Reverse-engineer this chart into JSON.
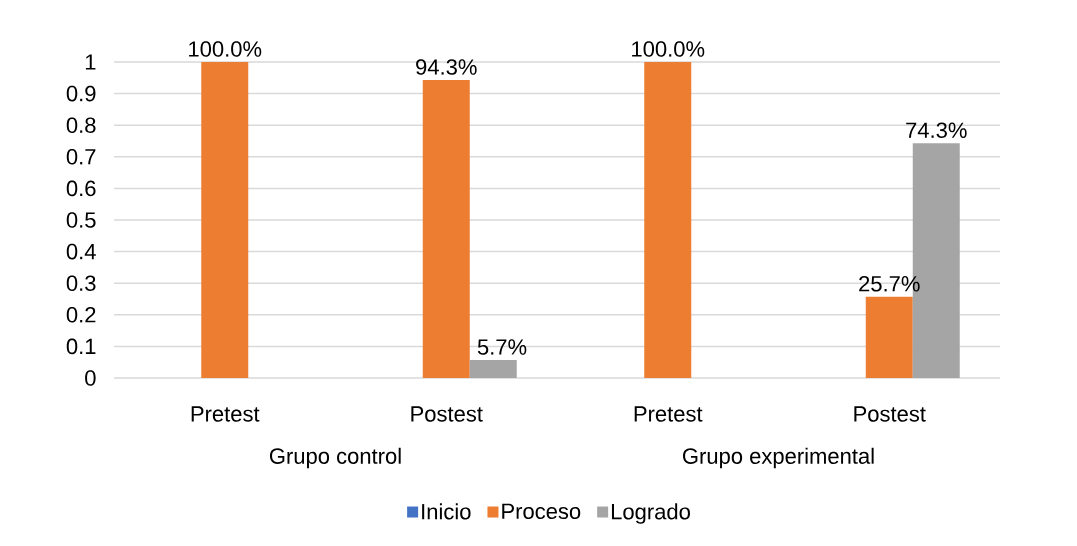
{
  "chart_data": {
    "type": "bar",
    "categories": [
      "Pretest",
      "Postest",
      "Pretest",
      "Postest"
    ],
    "series": [
      {
        "name": "Inicio",
        "color": "#4472c4",
        "values": [
          0,
          0,
          0,
          0
        ]
      },
      {
        "name": "Proceso",
        "color": "#ed7d31",
        "values": [
          1.0,
          0.943,
          1.0,
          0.257
        ],
        "value_labels": [
          "100.0%",
          "94.3%",
          "100.0%",
          "25.7%"
        ]
      },
      {
        "name": "Logrado",
        "color": "#a5a5a5",
        "values": [
          0,
          0.057,
          0,
          0.743
        ],
        "value_labels": [
          null,
          "5.7%",
          null,
          "74.3%"
        ]
      }
    ],
    "ylim": [
      0,
      1
    ],
    "yticks": [
      0,
      0.1,
      0.2,
      0.3,
      0.4,
      0.5,
      0.6,
      0.7,
      0.8,
      0.9,
      1
    ],
    "grid": "y",
    "legend": "bottom",
    "annotations": [
      "Grupo control",
      "Grupo experimental"
    ]
  }
}
